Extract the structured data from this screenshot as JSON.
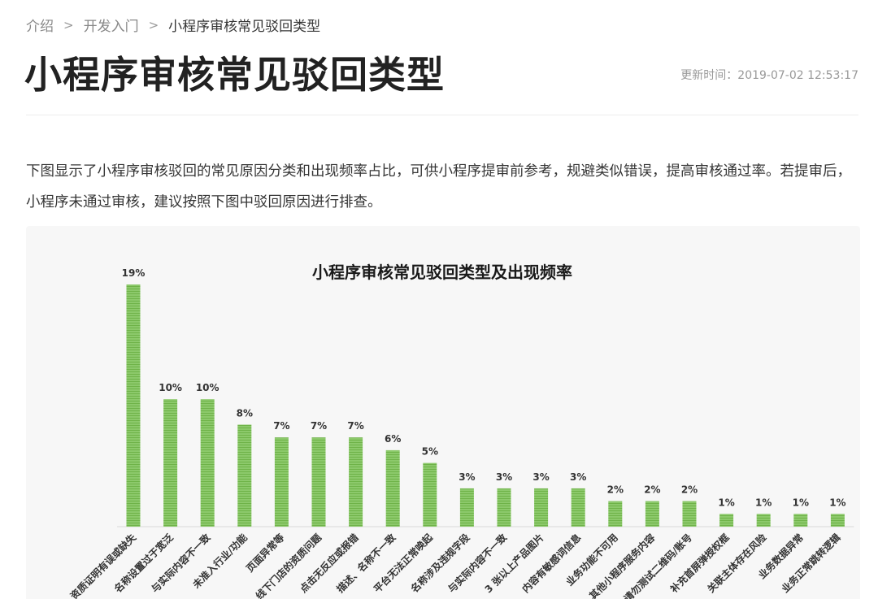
{
  "breadcrumb": {
    "items": [
      "介绍",
      "开发入门",
      "小程序审核常见驳回类型"
    ],
    "separator": ">"
  },
  "page": {
    "title": "小程序审核常见驳回类型",
    "updated": "更新时间：2019-07-02 12:53:17",
    "intro": "下图显示了小程序审核驳回的常见原因分类和出现频率占比，可供小程序提审前参考，规避类似错误，提高审核通过率。若提审后，小程序未通过审核，建议按照下图中驳回原因进行排查。"
  },
  "colors": {
    "bar_fill": "#8cc96b",
    "bar_stripe": "#6fb349",
    "figure_bg": "#f7f7f7"
  },
  "chart_data": {
    "type": "bar",
    "title": "小程序审核常见驳回类型及出现频率",
    "categories": [
      "资质证明有误或缺失",
      "名称设置过于宽泛",
      "与实际内容不一致",
      "未准入行业/功能",
      "页面异常等",
      "线下门店的资质问题",
      "点击无反应或报错",
      "描述、名称不一致",
      "平台无法正常唤起",
      "名称涉及违规字段",
      "与实际内容不一致",
      "3 张以上产品图片",
      "内容有敏感词信息",
      "业务功能不可用",
      "其他小程序服务内容",
      "请勿测试二维码/账号",
      "补充首屏弹授权框",
      "关联主体存在风险",
      "业务数据异常",
      "业务正常跳转逻辑"
    ],
    "values": [
      19,
      10,
      10,
      8,
      7,
      7,
      7,
      6,
      5,
      3,
      3,
      3,
      3,
      2,
      2,
      2,
      1,
      1,
      1,
      1
    ],
    "value_labels": [
      "19%",
      "10%",
      "10%",
      "8%",
      "7%",
      "7%",
      "7%",
      "6%",
      "5%",
      "3%",
      "3%",
      "3%",
      "3%",
      "2%",
      "2%",
      "2%",
      "1%",
      "1%",
      "1%",
      "1%"
    ],
    "ylim": [
      0,
      19
    ],
    "grid": false,
    "legend": "none"
  }
}
